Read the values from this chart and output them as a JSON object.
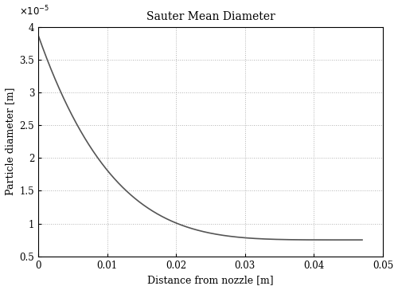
{
  "title": "Sauter Mean Diameter",
  "xlabel": "Distance from nozzle [m]",
  "ylabel": "Particle diameter [m]",
  "xlim": [
    0,
    0.05
  ],
  "ylim": [
    5e-06,
    4e-05
  ],
  "x_ticks": [
    0,
    0.01,
    0.02,
    0.03,
    0.04,
    0.05
  ],
  "y_ticks": [
    5e-06,
    1e-05,
    1.5e-05,
    2e-05,
    2.5e-05,
    3e-05,
    3.5e-05,
    4e-05
  ],
  "y_tick_labels": [
    "0.5",
    "1",
    "1.5",
    "2",
    "2.5",
    "3",
    "3.5",
    "4"
  ],
  "line_color": "#555555",
  "line_width": 1.2,
  "grid_color": "#aaaaaa",
  "bg_color": "#ffffff",
  "curve_x_end": 0.047,
  "curve_y_start": 3.87e-05,
  "curve_y_end": 7.5e-06,
  "power_n": 4.5,
  "title_fontsize": 10,
  "label_fontsize": 9,
  "tick_fontsize": 8.5
}
